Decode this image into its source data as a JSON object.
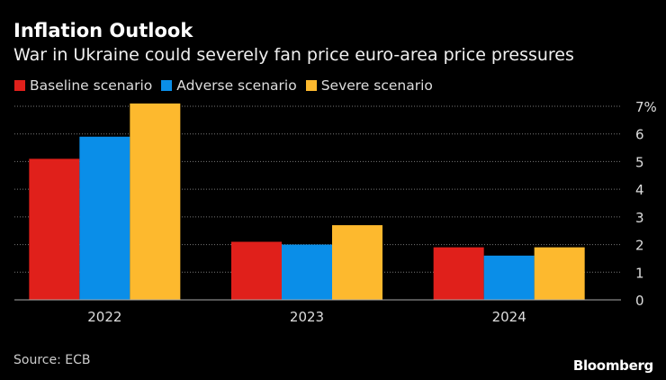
{
  "title": "Inflation Outlook",
  "subtitle": "War in Ukraine could severely fan price euro-area price pressures",
  "source": "Source: ECB",
  "logo": "Bloomberg",
  "chart_data": {
    "type": "bar",
    "title": "Inflation Outlook",
    "subtitle": "War in Ukraine could severely fan price euro-area price pressures",
    "categories": [
      "2022",
      "2023",
      "2024"
    ],
    "series": [
      {
        "name": "Baseline scenario",
        "color": "#e0201b",
        "values": [
          5.1,
          2.1,
          1.9
        ]
      },
      {
        "name": "Adverse scenario",
        "color": "#0a8ee8",
        "values": [
          5.9,
          2.0,
          1.6
        ]
      },
      {
        "name": "Severe scenario",
        "color": "#fdb92e",
        "values": [
          7.1,
          2.7,
          1.9
        ]
      }
    ],
    "ylim": [
      0,
      7
    ],
    "yticks": [
      "0",
      "1",
      "2",
      "3",
      "4",
      "5",
      "6",
      "7%"
    ],
    "grid": true,
    "legend": "top-left",
    "yaxis_position": "right"
  }
}
